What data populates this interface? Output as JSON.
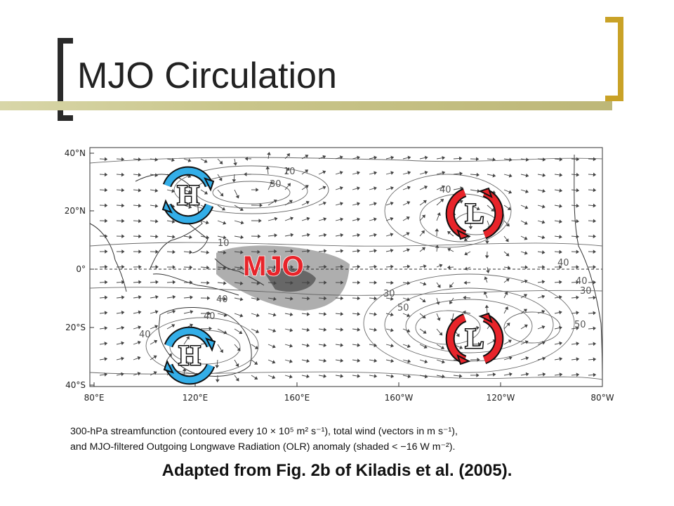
{
  "slide": {
    "title": "MJO Circulation",
    "caption_line1": "300-hPa streamfunction (contoured every 10 × 10⁵ m² s⁻¹), total wind (vectors in m s⁻¹),",
    "caption_line2": "and MJO-filtered Outgoing Longwave Radiation (OLR) anomaly (shaded < −16 W m⁻²).",
    "credit": "Adapted from Fig. 2b of Kiladis et al. (2005)."
  },
  "map": {
    "lat_labels": [
      "40°N",
      "20°N",
      "0°",
      "20°S",
      "40°S"
    ],
    "lon_labels": [
      "80°E",
      "120°E",
      "160°E",
      "160°W",
      "120°W",
      "80°W"
    ],
    "contour_labels": [
      "10",
      "30",
      "10",
      "40",
      "40",
      "40",
      "50",
      "30",
      "30",
      "50",
      "40",
      "40",
      "40"
    ],
    "mjo_label": "MJO",
    "high_letter": "H",
    "low_letter": "L",
    "colors": {
      "high": "#33aee8",
      "low": "#e8242a",
      "mjo_shading": "#7f7f7f",
      "mjo_text": "#e8242a"
    }
  }
}
